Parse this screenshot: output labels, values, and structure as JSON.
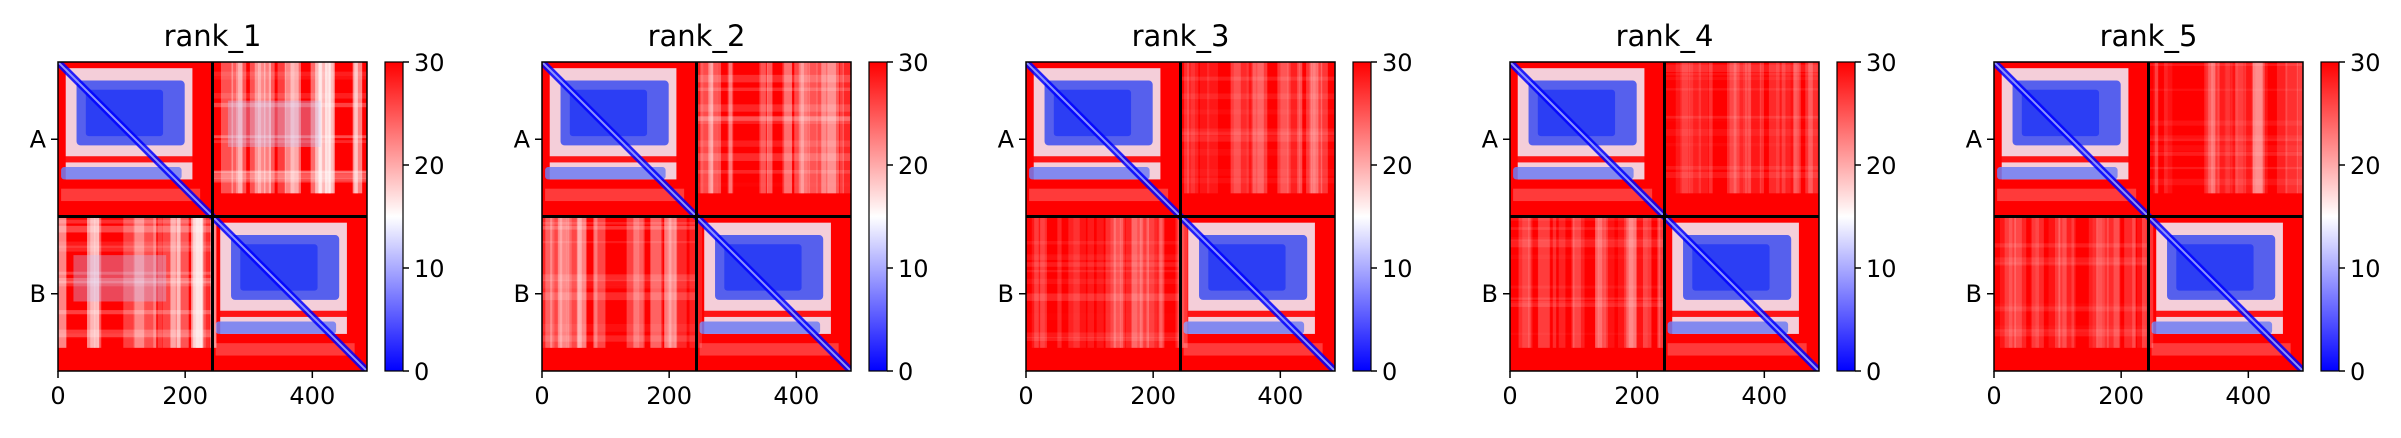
{
  "figure": {
    "background": "#ffffff"
  },
  "chart_data": [
    {
      "type": "heatmap",
      "title": "rank_1",
      "xlabel": "",
      "ylabel": "",
      "xlim": [
        0,
        486
      ],
      "x_ticks": [
        0,
        200,
        400
      ],
      "y_tick_labels": [
        "A",
        "B"
      ],
      "chain_boundary": 243,
      "colorbar": {
        "min": 0,
        "max": 30,
        "ticks": [
          0,
          10,
          20,
          30
        ],
        "colors": [
          "#0000ff",
          "#ffffff",
          "#ff0000"
        ]
      }
    },
    {
      "type": "heatmap",
      "title": "rank_2",
      "xlabel": "",
      "ylabel": "",
      "xlim": [
        0,
        486
      ],
      "x_ticks": [
        0,
        200,
        400
      ],
      "y_tick_labels": [
        "A",
        "B"
      ],
      "chain_boundary": 243,
      "colorbar": {
        "min": 0,
        "max": 30,
        "ticks": [
          0,
          10,
          20,
          30
        ],
        "colors": [
          "#0000ff",
          "#ffffff",
          "#ff0000"
        ]
      }
    },
    {
      "type": "heatmap",
      "title": "rank_3",
      "xlabel": "",
      "ylabel": "",
      "xlim": [
        0,
        486
      ],
      "x_ticks": [
        0,
        200,
        400
      ],
      "y_tick_labels": [
        "A",
        "B"
      ],
      "chain_boundary": 243,
      "colorbar": {
        "min": 0,
        "max": 30,
        "ticks": [
          0,
          10,
          20,
          30
        ],
        "colors": [
          "#0000ff",
          "#ffffff",
          "#ff0000"
        ]
      }
    },
    {
      "type": "heatmap",
      "title": "rank_4",
      "xlabel": "",
      "ylabel": "",
      "xlim": [
        0,
        486
      ],
      "x_ticks": [
        0,
        200,
        400
      ],
      "y_tick_labels": [
        "A",
        "B"
      ],
      "chain_boundary": 243,
      "colorbar": {
        "min": 0,
        "max": 30,
        "ticks": [
          0,
          10,
          20,
          30
        ],
        "colors": [
          "#0000ff",
          "#ffffff",
          "#ff0000"
        ]
      }
    },
    {
      "type": "heatmap",
      "title": "rank_5",
      "xlabel": "",
      "ylabel": "",
      "xlim": [
        0,
        486
      ],
      "x_ticks": [
        0,
        200,
        400
      ],
      "y_tick_labels": [
        "A",
        "B"
      ],
      "chain_boundary": 243,
      "colorbar": {
        "min": 0,
        "max": 30,
        "ticks": [
          0,
          10,
          20,
          30
        ],
        "colors": [
          "#0000ff",
          "#ffffff",
          "#ff0000"
        ]
      }
    }
  ]
}
